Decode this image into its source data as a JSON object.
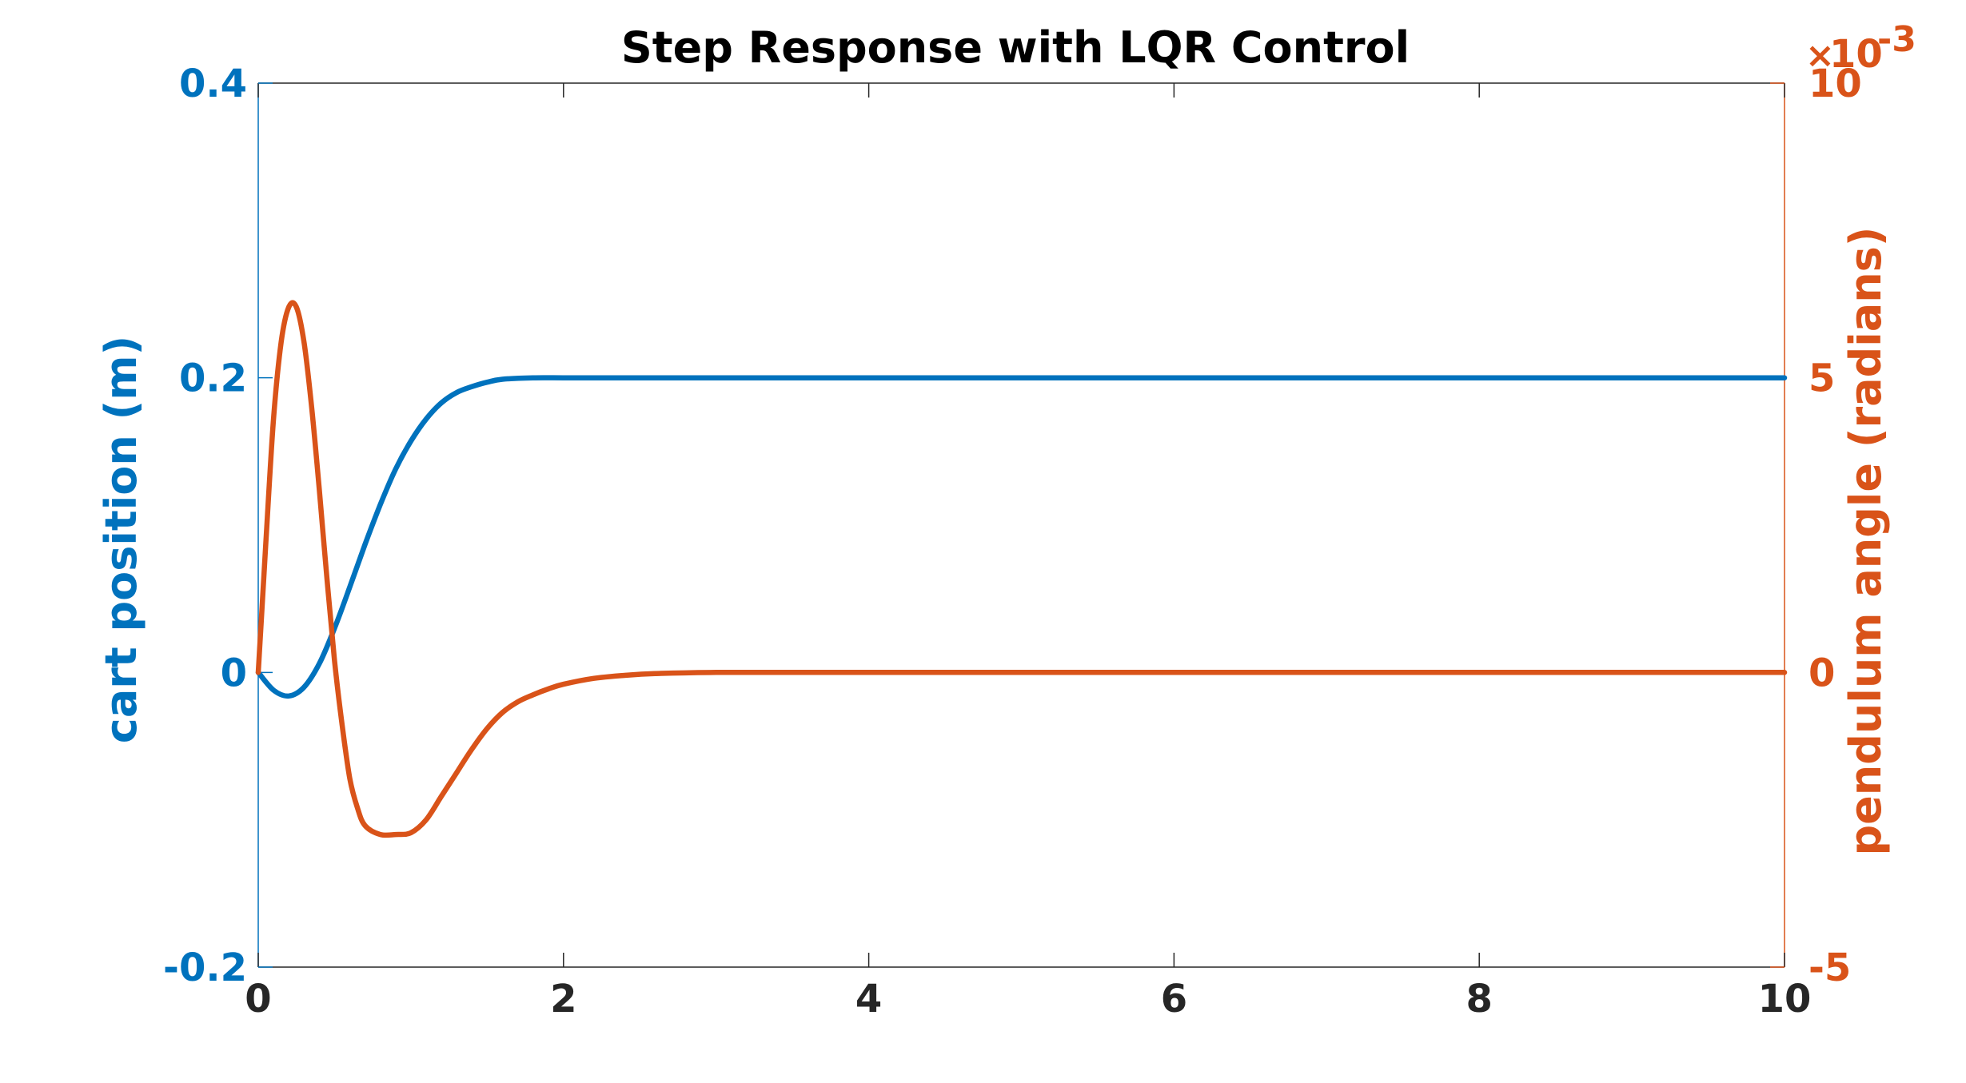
{
  "chart_data": {
    "type": "line",
    "title": "Step Response with LQR Control",
    "xlabel": "",
    "xlim": [
      0,
      10
    ],
    "x_ticks": [
      "0",
      "2",
      "4",
      "6",
      "8",
      "10"
    ],
    "y_left": {
      "label": "cart position (m)",
      "ylim": [
        -0.2,
        0.4
      ],
      "ticks": [
        "-0.2",
        "0",
        "0.2",
        "0.4"
      ],
      "color": "#0072BD"
    },
    "y_right": {
      "label": "pendulum angle (radians)",
      "ylim": [
        -5,
        10
      ],
      "ticks": [
        "-5",
        "0",
        "5",
        "10"
      ],
      "multiplier_symbol": "×",
      "multiplier_base": "10",
      "multiplier_exponent": "-3",
      "color": "#D95319"
    },
    "grid": false,
    "series": [
      {
        "axis": "left",
        "color": "#0072BD",
        "x": [
          0,
          0.1,
          0.2,
          0.3,
          0.4,
          0.5,
          0.6,
          0.7,
          0.8,
          0.9,
          1.0,
          1.1,
          1.2,
          1.3,
          1.4,
          1.5,
          1.6,
          1.8,
          2.0,
          2.2,
          2.5,
          3.0,
          4.0,
          6.0,
          8.0,
          10.0
        ],
        "y": [
          0,
          -0.012,
          -0.016,
          -0.01,
          0.006,
          0.03,
          0.058,
          0.087,
          0.114,
          0.138,
          0.157,
          0.172,
          0.183,
          0.19,
          0.194,
          0.197,
          0.199,
          0.2,
          0.2,
          0.2,
          0.2,
          0.2,
          0.2,
          0.2,
          0.2,
          0.2
        ]
      },
      {
        "axis": "right",
        "color": "#D95319",
        "x": [
          0,
          0.05,
          0.1,
          0.15,
          0.2,
          0.25,
          0.3,
          0.35,
          0.4,
          0.45,
          0.5,
          0.55,
          0.6,
          0.65,
          0.7,
          0.8,
          0.9,
          1.0,
          1.1,
          1.2,
          1.3,
          1.4,
          1.5,
          1.6,
          1.7,
          1.8,
          1.9,
          2.0,
          2.2,
          2.4,
          2.6,
          3.0,
          4.0,
          6.0,
          8.0,
          10.0
        ],
        "y": [
          0,
          2.2,
          4.3,
          5.6,
          6.2,
          6.2,
          5.6,
          4.5,
          3.1,
          1.6,
          0.2,
          -0.9,
          -1.8,
          -2.3,
          -2.6,
          -2.75,
          -2.75,
          -2.72,
          -2.5,
          -2.1,
          -1.7,
          -1.3,
          -0.95,
          -0.68,
          -0.5,
          -0.38,
          -0.28,
          -0.2,
          -0.1,
          -0.05,
          -0.02,
          0,
          0,
          0,
          0,
          0
        ]
      }
    ]
  }
}
